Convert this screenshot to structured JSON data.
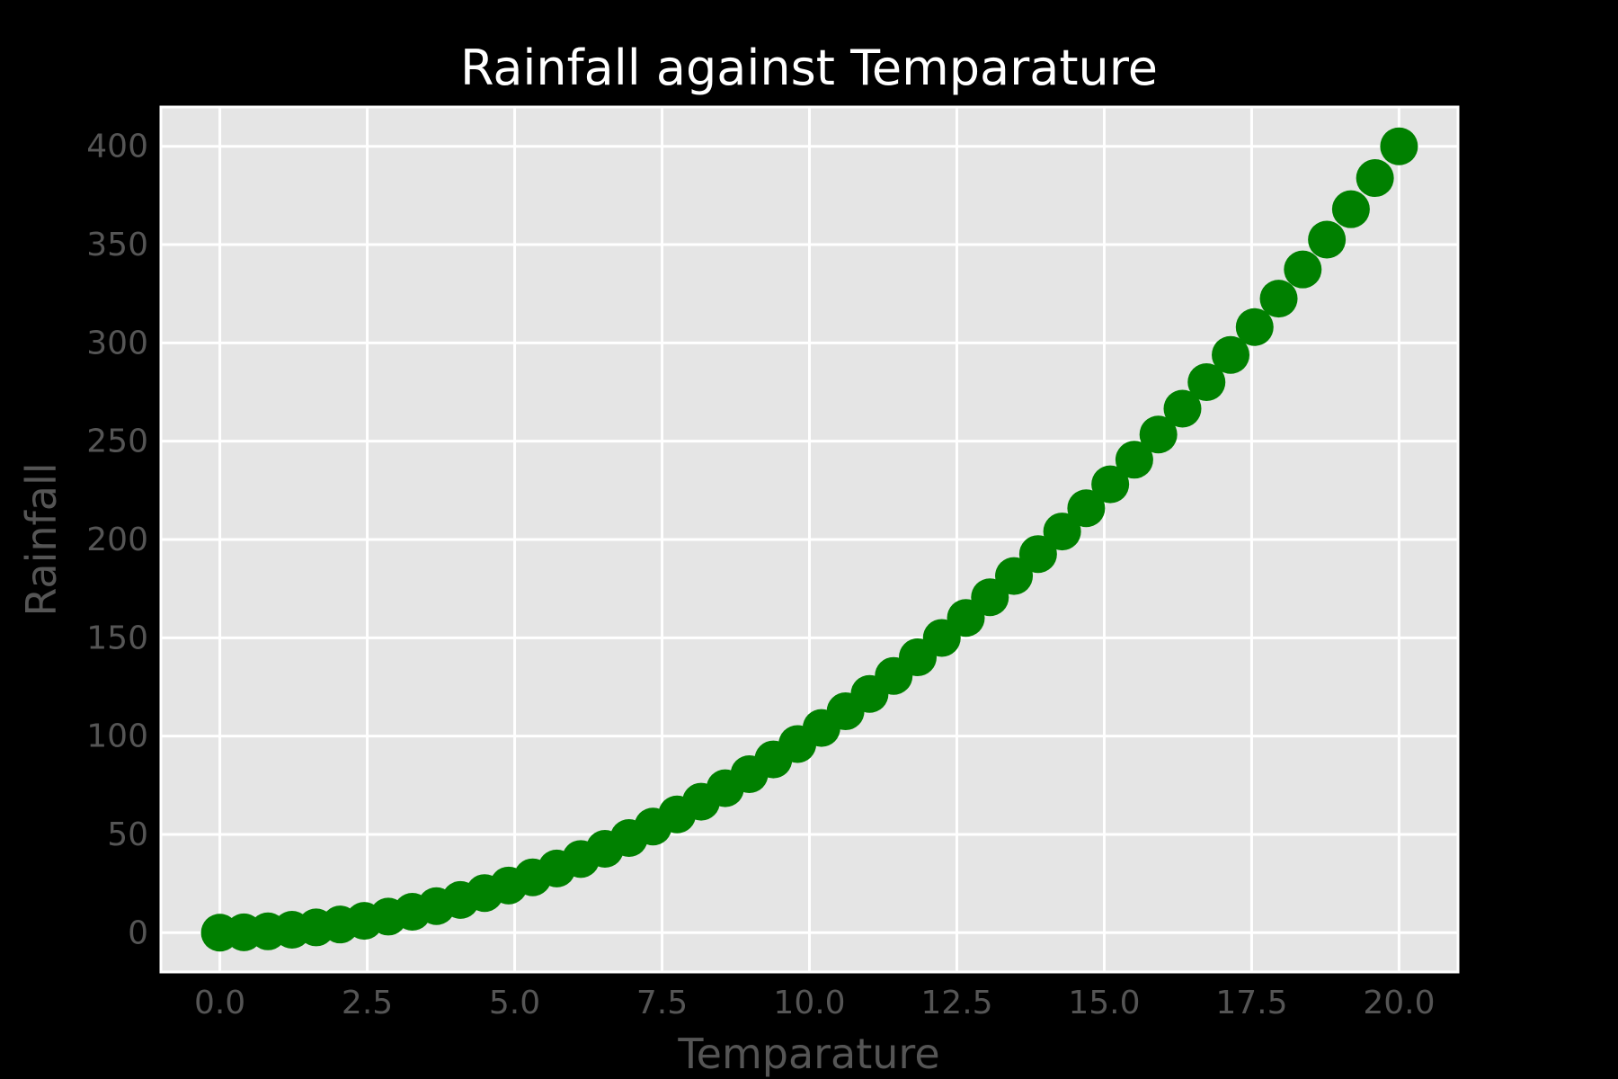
{
  "chart_data": {
    "type": "scatter",
    "title": "Rainfall against Temparature",
    "xlabel": "Temparature",
    "ylabel": "Rainfall",
    "xlim": [
      -1,
      21
    ],
    "ylim": [
      -20,
      420
    ],
    "xticks": [
      "0.0",
      "2.5",
      "5.0",
      "7.5",
      "10.0",
      "12.5",
      "15.0",
      "17.5",
      "20.0"
    ],
    "yticks": [
      "0",
      "50",
      "100",
      "150",
      "200",
      "250",
      "300",
      "350",
      "400"
    ],
    "grid": true,
    "background_color": "#000000",
    "plot_background_color": "#e5e5e5",
    "series": [
      {
        "color": "#008000",
        "x": [
          0.0,
          0.408,
          0.816,
          1.224,
          1.633,
          2.041,
          2.449,
          2.857,
          3.265,
          3.673,
          4.082,
          4.49,
          4.898,
          5.306,
          5.714,
          6.122,
          6.531,
          6.939,
          7.347,
          7.755,
          8.163,
          8.571,
          8.98,
          9.388,
          9.796,
          10.204,
          10.612,
          11.02,
          11.429,
          11.837,
          12.245,
          12.653,
          13.061,
          13.469,
          13.878,
          14.286,
          14.694,
          15.102,
          15.51,
          15.918,
          16.327,
          16.735,
          17.143,
          17.551,
          17.959,
          18.367,
          18.776,
          19.184,
          19.592,
          20.0
        ],
        "y": [
          0.0,
          0.17,
          0.67,
          1.5,
          2.67,
          4.16,
          6.0,
          8.16,
          10.66,
          13.49,
          16.66,
          20.16,
          23.99,
          28.16,
          32.65,
          37.48,
          42.65,
          48.15,
          53.98,
          60.14,
          66.64,
          73.47,
          80.63,
          88.13,
          95.96,
          104.12,
          112.62,
          121.45,
          130.61,
          140.11,
          149.94,
          160.1,
          170.6,
          181.42,
          192.59,
          204.08,
          215.91,
          228.07,
          240.57,
          253.39,
          266.55,
          280.05,
          293.88,
          308.04,
          322.53,
          337.36,
          352.52,
          368.01,
          383.84,
          400.0
        ]
      }
    ]
  }
}
